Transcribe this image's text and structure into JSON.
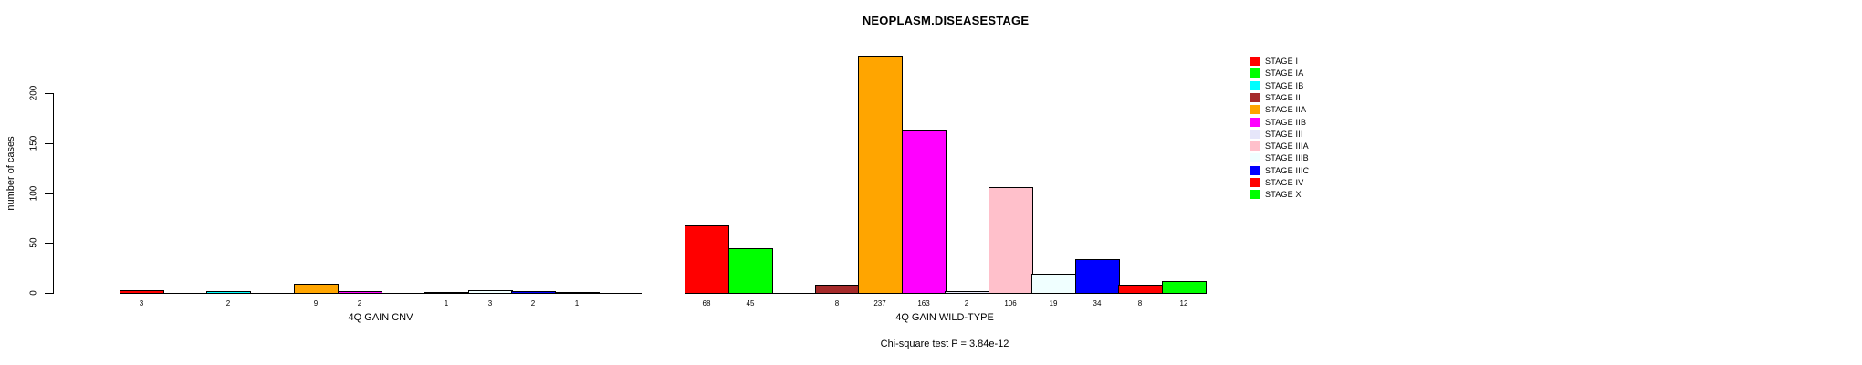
{
  "title": "NEOPLASM.DISEASESTAGE",
  "chart_data": {
    "type": "bar",
    "title": "NEOPLASM.DISEASESTAGE",
    "xlabel": "",
    "ylabel": "number of cases",
    "ylim": [
      0,
      200
    ],
    "yticks": [
      0,
      50,
      100,
      150,
      200
    ],
    "grid": false,
    "legend_position": "right-inside",
    "categories": [
      "STAGE I",
      "STAGE IA",
      "STAGE IB",
      "STAGE II",
      "STAGE IIA",
      "STAGE IIB",
      "STAGE III",
      "STAGE IIIA",
      "STAGE IIIB",
      "STAGE IIIC",
      "STAGE IV",
      "STAGE X"
    ],
    "colors": [
      "#FF0000",
      "#00FF00",
      "#00FFFF",
      "#A52A2A",
      "#FFA500",
      "#FF00FF",
      "#E6E6FA",
      "#FFC0CB",
      "#F0FFFF",
      "#0000FF",
      "#FF0000",
      "#00FF00"
    ],
    "groups": [
      {
        "label": "4Q GAIN CNV",
        "values": [
          3,
          0,
          2,
          0,
          9,
          2,
          0,
          1,
          3,
          2,
          1,
          0
        ]
      },
      {
        "label": "4Q GAIN WILD-TYPE",
        "values": [
          68,
          45,
          0,
          8,
          237,
          163,
          2,
          106,
          19,
          34,
          8,
          12
        ]
      }
    ],
    "stat_annotation": "Chi-square test P = 3.84e-12"
  }
}
